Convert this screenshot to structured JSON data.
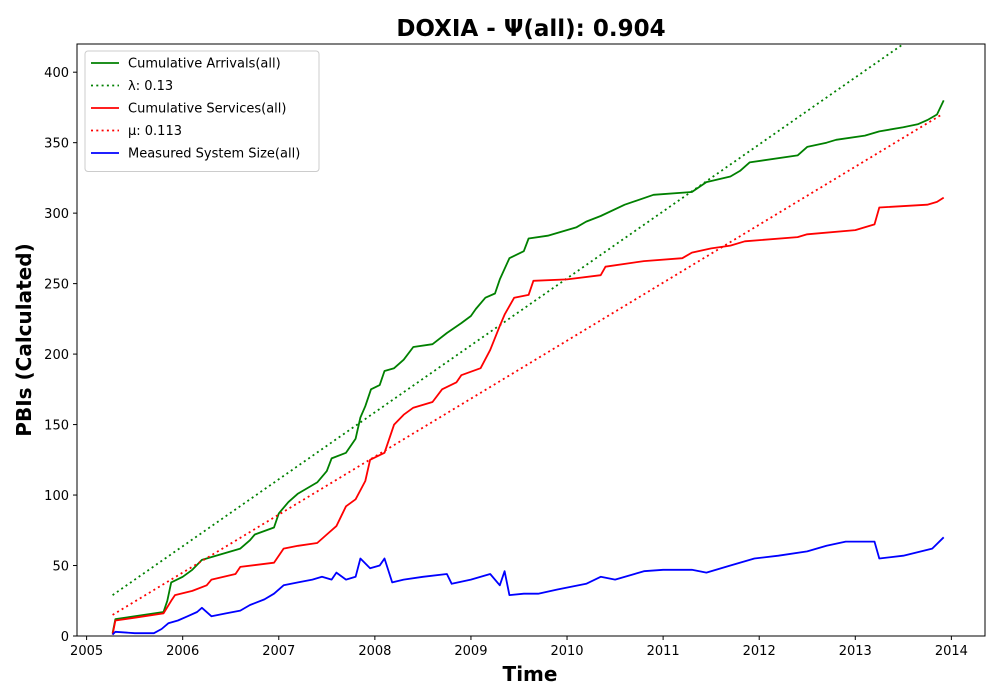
{
  "chart_data": {
    "type": "line",
    "title": "DOXIA -  Ψ(all): 0.904",
    "xlabel": "Time",
    "ylabel": "PBIs (Calculated)",
    "xlim": [
      2004.9,
      2014.35
    ],
    "ylim": [
      0,
      420
    ],
    "x_ticks": [
      2005,
      2006,
      2007,
      2008,
      2009,
      2010,
      2011,
      2012,
      2013,
      2014
    ],
    "y_ticks": [
      0,
      50,
      100,
      150,
      200,
      250,
      300,
      350,
      400
    ],
    "grid": false,
    "legend_position": "top-left",
    "series": [
      {
        "name": "Cumulative Arrivals(all)",
        "color": "#008000",
        "style": "solid",
        "points": [
          [
            2005.27,
            2
          ],
          [
            2005.3,
            12
          ],
          [
            2005.5,
            14
          ],
          [
            2005.8,
            17
          ],
          [
            2005.84,
            25
          ],
          [
            2005.88,
            38
          ],
          [
            2006.0,
            42
          ],
          [
            2006.1,
            47
          ],
          [
            2006.2,
            54
          ],
          [
            2006.4,
            58
          ],
          [
            2006.6,
            62
          ],
          [
            2006.7,
            68
          ],
          [
            2006.75,
            72
          ],
          [
            2006.95,
            77
          ],
          [
            2007.0,
            87
          ],
          [
            2007.1,
            95
          ],
          [
            2007.2,
            101
          ],
          [
            2007.3,
            105
          ],
          [
            2007.4,
            109
          ],
          [
            2007.5,
            117
          ],
          [
            2007.55,
            126
          ],
          [
            2007.7,
            130
          ],
          [
            2007.8,
            140
          ],
          [
            2007.85,
            155
          ],
          [
            2007.9,
            163
          ],
          [
            2007.96,
            175
          ],
          [
            2008.05,
            178
          ],
          [
            2008.1,
            188
          ],
          [
            2008.2,
            190
          ],
          [
            2008.3,
            196
          ],
          [
            2008.4,
            205
          ],
          [
            2008.6,
            207
          ],
          [
            2008.75,
            215
          ],
          [
            2008.9,
            222
          ],
          [
            2009.0,
            227
          ],
          [
            2009.05,
            232
          ],
          [
            2009.15,
            240
          ],
          [
            2009.25,
            243
          ],
          [
            2009.3,
            253
          ],
          [
            2009.4,
            268
          ],
          [
            2009.55,
            273
          ],
          [
            2009.6,
            282
          ],
          [
            2009.8,
            284
          ],
          [
            2010.1,
            290
          ],
          [
            2010.2,
            294
          ],
          [
            2010.35,
            298
          ],
          [
            2010.6,
            306
          ],
          [
            2010.9,
            313
          ],
          [
            2011.3,
            315
          ],
          [
            2011.45,
            322
          ],
          [
            2011.7,
            326
          ],
          [
            2011.8,
            330
          ],
          [
            2011.9,
            336
          ],
          [
            2012.4,
            341
          ],
          [
            2012.5,
            347
          ],
          [
            2012.7,
            350
          ],
          [
            2012.8,
            352
          ],
          [
            2013.1,
            355
          ],
          [
            2013.25,
            358
          ],
          [
            2013.5,
            361
          ],
          [
            2013.65,
            363
          ],
          [
            2013.75,
            366
          ],
          [
            2013.85,
            370
          ],
          [
            2013.92,
            380
          ]
        ]
      },
      {
        "name": "λ: 0.13",
        "color": "#008000",
        "style": "dotted",
        "points": [
          [
            2005.27,
            29
          ],
          [
            2013.5,
            420
          ]
        ]
      },
      {
        "name": "Cumulative Services(all)",
        "color": "#ff0000",
        "style": "solid",
        "points": [
          [
            2005.27,
            1
          ],
          [
            2005.3,
            11
          ],
          [
            2005.5,
            13
          ],
          [
            2005.8,
            16
          ],
          [
            2005.88,
            25
          ],
          [
            2005.92,
            29
          ],
          [
            2006.1,
            32
          ],
          [
            2006.25,
            36
          ],
          [
            2006.3,
            40
          ],
          [
            2006.55,
            44
          ],
          [
            2006.6,
            49
          ],
          [
            2006.95,
            52
          ],
          [
            2007.05,
            62
          ],
          [
            2007.2,
            64
          ],
          [
            2007.4,
            66
          ],
          [
            2007.5,
            72
          ],
          [
            2007.6,
            78
          ],
          [
            2007.65,
            85
          ],
          [
            2007.7,
            92
          ],
          [
            2007.8,
            97
          ],
          [
            2007.9,
            110
          ],
          [
            2007.95,
            125
          ],
          [
            2008.1,
            130
          ],
          [
            2008.2,
            150
          ],
          [
            2008.3,
            157
          ],
          [
            2008.4,
            162
          ],
          [
            2008.6,
            166
          ],
          [
            2008.7,
            175
          ],
          [
            2008.85,
            180
          ],
          [
            2008.9,
            185
          ],
          [
            2009.1,
            190
          ],
          [
            2009.2,
            203
          ],
          [
            2009.3,
            220
          ],
          [
            2009.35,
            228
          ],
          [
            2009.45,
            240
          ],
          [
            2009.6,
            242
          ],
          [
            2009.65,
            252
          ],
          [
            2010.0,
            253
          ],
          [
            2010.35,
            256
          ],
          [
            2010.4,
            262
          ],
          [
            2010.8,
            266
          ],
          [
            2011.2,
            268
          ],
          [
            2011.3,
            272
          ],
          [
            2011.5,
            275
          ],
          [
            2011.7,
            277
          ],
          [
            2011.85,
            280
          ],
          [
            2012.4,
            283
          ],
          [
            2012.5,
            285
          ],
          [
            2013.0,
            288
          ],
          [
            2013.2,
            292
          ],
          [
            2013.25,
            304
          ],
          [
            2013.75,
            306
          ],
          [
            2013.85,
            308
          ],
          [
            2013.92,
            311
          ]
        ]
      },
      {
        "name": "μ: 0.113",
        "color": "#ff0000",
        "style": "dotted",
        "points": [
          [
            2005.27,
            15
          ],
          [
            2013.9,
            370
          ]
        ]
      },
      {
        "name": "Measured System Size(all)",
        "color": "#0000ff",
        "style": "solid",
        "points": [
          [
            2005.27,
            1
          ],
          [
            2005.3,
            3
          ],
          [
            2005.5,
            2
          ],
          [
            2005.7,
            2
          ],
          [
            2005.78,
            5
          ],
          [
            2005.85,
            9
          ],
          [
            2005.95,
            11
          ],
          [
            2006.05,
            14
          ],
          [
            2006.15,
            17
          ],
          [
            2006.2,
            20
          ],
          [
            2006.3,
            14
          ],
          [
            2006.45,
            16
          ],
          [
            2006.6,
            18
          ],
          [
            2006.7,
            22
          ],
          [
            2006.85,
            26
          ],
          [
            2006.95,
            30
          ],
          [
            2007.05,
            36
          ],
          [
            2007.2,
            38
          ],
          [
            2007.35,
            40
          ],
          [
            2007.45,
            42
          ],
          [
            2007.55,
            40
          ],
          [
            2007.6,
            45
          ],
          [
            2007.7,
            40
          ],
          [
            2007.8,
            42
          ],
          [
            2007.85,
            55
          ],
          [
            2007.95,
            48
          ],
          [
            2008.05,
            50
          ],
          [
            2008.1,
            55
          ],
          [
            2008.18,
            38
          ],
          [
            2008.3,
            40
          ],
          [
            2008.5,
            42
          ],
          [
            2008.75,
            44
          ],
          [
            2008.8,
            37
          ],
          [
            2009.0,
            40
          ],
          [
            2009.2,
            44
          ],
          [
            2009.3,
            36
          ],
          [
            2009.35,
            46
          ],
          [
            2009.4,
            29
          ],
          [
            2009.55,
            30
          ],
          [
            2009.7,
            30
          ],
          [
            2009.9,
            33
          ],
          [
            2010.2,
            37
          ],
          [
            2010.35,
            42
          ],
          [
            2010.5,
            40
          ],
          [
            2010.8,
            46
          ],
          [
            2011.0,
            47
          ],
          [
            2011.3,
            47
          ],
          [
            2011.45,
            45
          ],
          [
            2011.7,
            50
          ],
          [
            2011.95,
            55
          ],
          [
            2012.2,
            57
          ],
          [
            2012.5,
            60
          ],
          [
            2012.7,
            64
          ],
          [
            2012.9,
            67
          ],
          [
            2013.2,
            67
          ],
          [
            2013.25,
            55
          ],
          [
            2013.5,
            57
          ],
          [
            2013.8,
            62
          ],
          [
            2013.92,
            70
          ]
        ]
      }
    ]
  }
}
